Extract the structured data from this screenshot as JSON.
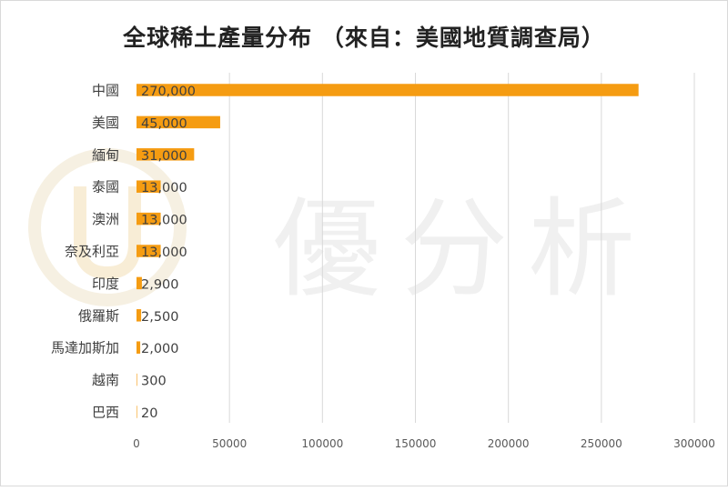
{
  "chart_data": {
    "type": "bar",
    "orientation": "horizontal",
    "title": "全球稀土產量分布 （來自：美國地質調查局）",
    "categories": [
      "中國",
      "美國",
      "緬甸",
      "泰國",
      "澳洲",
      "奈及利亞",
      "印度",
      "俄羅斯",
      "馬達加斯加",
      "越南",
      "巴西"
    ],
    "values": [
      270000,
      45000,
      31000,
      13000,
      13000,
      13000,
      2900,
      2500,
      2000,
      300,
      20
    ],
    "data_labels": [
      "270,000",
      "45,000",
      "31,000",
      "13,000",
      "13,000",
      "13,000",
      "2,900",
      "2,500",
      "2,000",
      "300",
      "20"
    ],
    "xlim": [
      0,
      300000
    ],
    "xticks": [
      0,
      50000,
      100000,
      150000,
      200000,
      250000,
      300000
    ],
    "xtick_labels": [
      "0",
      "50000",
      "100000",
      "150000",
      "200000",
      "250000",
      "300000"
    ],
    "grid": "vertical",
    "bar_color": "#F59C12",
    "watermark": "優分析"
  }
}
